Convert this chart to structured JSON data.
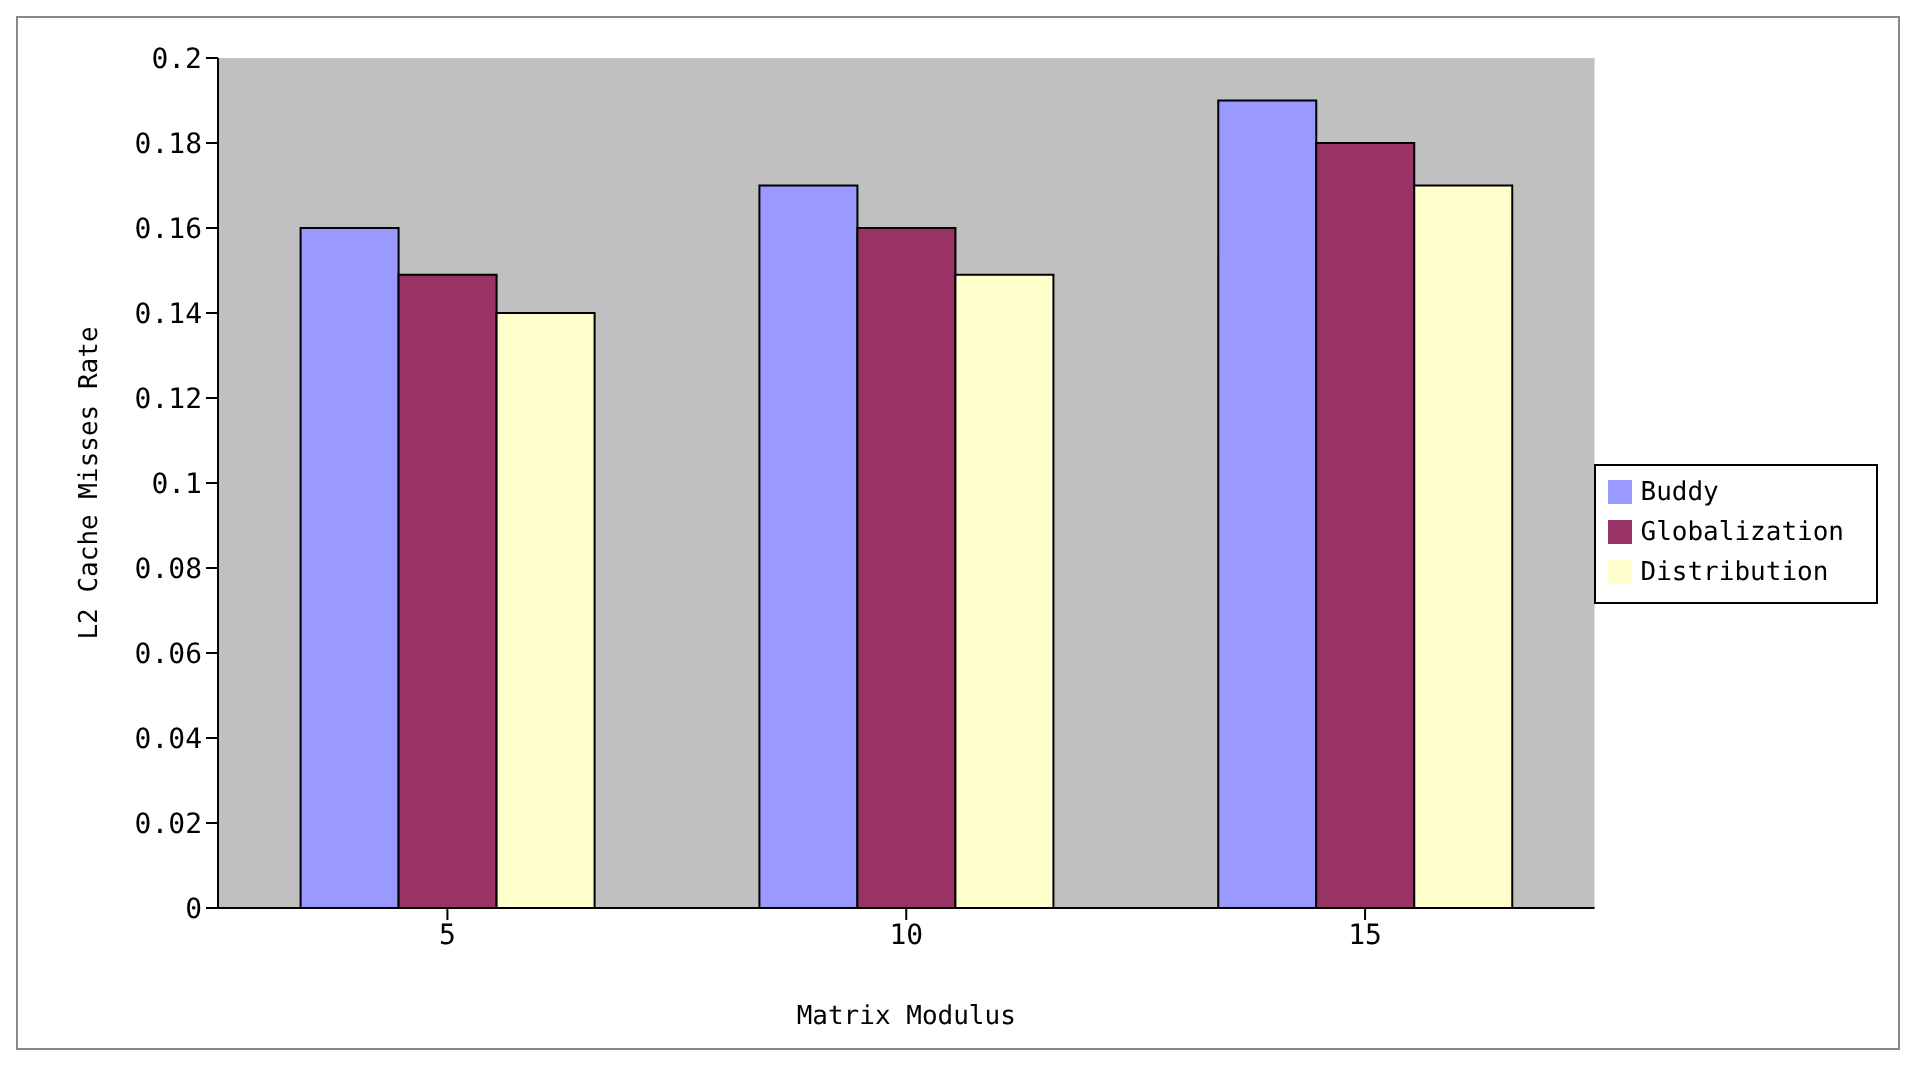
{
  "chart_data": {
    "type": "bar",
    "xlabel": "Matrix Modulus",
    "ylabel": "L2 Cache Misses Rate",
    "categories": [
      "5",
      "10",
      "15"
    ],
    "series": [
      {
        "name": "Buddy",
        "color": "#9999ff",
        "values": [
          0.16,
          0.17,
          0.19
        ]
      },
      {
        "name": "Globalization",
        "color": "#993366",
        "values": [
          0.149,
          0.16,
          0.18
        ]
      },
      {
        "name": "Distribution",
        "color": "#ffffcc",
        "values": [
          0.14,
          0.149,
          0.17
        ]
      }
    ],
    "ylim": [
      0,
      0.2
    ],
    "yticks": [
      0,
      0.02,
      0.04,
      0.06,
      0.08,
      0.1,
      0.12,
      0.14,
      0.16,
      0.18,
      0.2
    ],
    "legend": "right"
  }
}
